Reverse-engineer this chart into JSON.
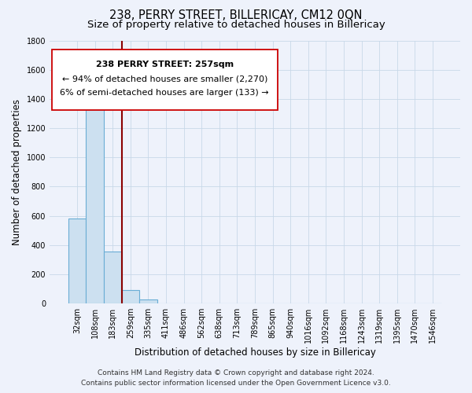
{
  "title": "238, PERRY STREET, BILLERICAY, CM12 0QN",
  "subtitle": "Size of property relative to detached houses in Billericay",
  "xlabel": "Distribution of detached houses by size in Billericay",
  "ylabel": "Number of detached properties",
  "bar_values": [
    580,
    1350,
    355,
    95,
    30,
    0,
    0,
    0,
    0,
    0,
    0,
    0,
    0,
    0,
    0,
    0,
    0,
    0,
    0,
    0,
    0
  ],
  "bin_labels": [
    "32sqm",
    "108sqm",
    "183sqm",
    "259sqm",
    "335sqm",
    "411sqm",
    "486sqm",
    "562sqm",
    "638sqm",
    "713sqm",
    "789sqm",
    "865sqm",
    "940sqm",
    "1016sqm",
    "1092sqm",
    "1168sqm",
    "1243sqm",
    "1319sqm",
    "1395sqm",
    "1470sqm",
    "1546sqm"
  ],
  "bar_color": "#cce0f0",
  "bar_edge_color": "#6aadd5",
  "background_color": "#eef2fb",
  "vline_color": "#8b0000",
  "annotation_line1": "238 PERRY STREET: 257sqm",
  "annotation_line2": "← 94% of detached houses are smaller (2,270)",
  "annotation_line3": "6% of semi-detached houses are larger (133) →",
  "footer_line1": "Contains HM Land Registry data © Crown copyright and database right 2024.",
  "footer_line2": "Contains public sector information licensed under the Open Government Licence v3.0.",
  "ylim": [
    0,
    1800
  ],
  "yticks": [
    0,
    200,
    400,
    600,
    800,
    1000,
    1200,
    1400,
    1600,
    1800
  ],
  "title_fontsize": 10.5,
  "subtitle_fontsize": 9.5,
  "axis_label_fontsize": 8.5,
  "tick_fontsize": 7,
  "annotation_fontsize": 8,
  "footer_fontsize": 6.5
}
